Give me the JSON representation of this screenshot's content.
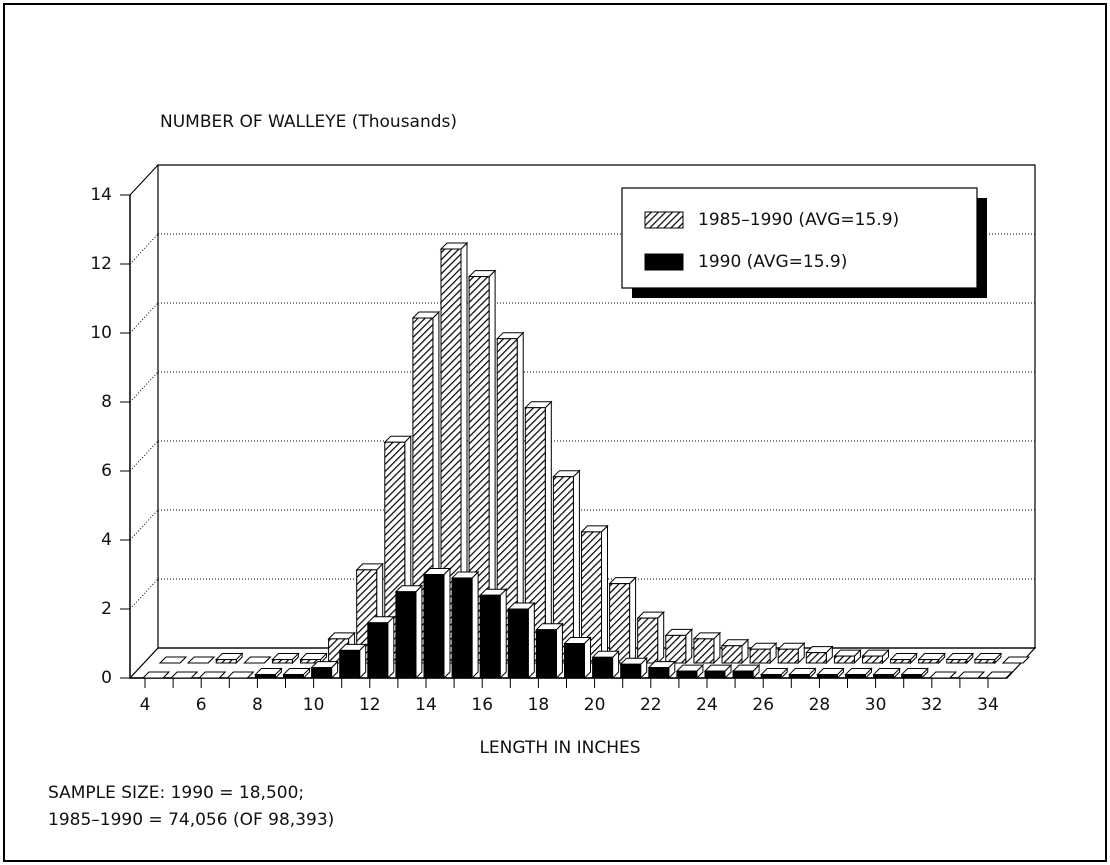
{
  "chart_data": {
    "type": "bar3d",
    "title": "NUMBER OF WALLEYE (Thousands)",
    "x_label": "LENGTH IN INCHES",
    "notes": [
      "SAMPLE SIZE: 1990 = 18,500;",
      "1985–1990 = 74,056 (OF 98,393)"
    ],
    "categories": [
      "4",
      null,
      "6",
      null,
      "8",
      null,
      "10",
      null,
      "12",
      null,
      "14",
      null,
      "16",
      null,
      "18",
      null,
      "20",
      null,
      "22",
      null,
      "24",
      null,
      "26",
      null,
      "28",
      null,
      "30",
      null,
      "32",
      null,
      "34"
    ],
    "series": [
      {
        "name": "1985–1990 (AVG=15.9)",
        "color": "hatch",
        "values": [
          0,
          0,
          0.1,
          0,
          0.1,
          0.1,
          0.7,
          2.7,
          6.4,
          10.0,
          12.0,
          11.2,
          9.4,
          7.4,
          5.4,
          3.8,
          2.3,
          1.3,
          0.8,
          0.7,
          0.5,
          0.4,
          0.4,
          0.3,
          0.2,
          0.2,
          0.1,
          0.1,
          0.1,
          0.1,
          0
        ]
      },
      {
        "name": "1990 (AVG=15.9)",
        "color": "#000000",
        "values": [
          0,
          0,
          0,
          0,
          0.1,
          0.1,
          0.3,
          0.8,
          1.6,
          2.5,
          3.0,
          2.9,
          2.4,
          2.0,
          1.4,
          1.0,
          0.6,
          0.4,
          0.3,
          0.2,
          0.2,
          0.2,
          0.1,
          0.1,
          0.1,
          0.1,
          0.1,
          0.1,
          0,
          0,
          0
        ]
      }
    ],
    "ylim": [
      0,
      14
    ],
    "yticks": [
      0,
      2,
      4,
      6,
      8,
      10,
      12,
      14
    ],
    "grid": true,
    "legend": "upper right"
  }
}
